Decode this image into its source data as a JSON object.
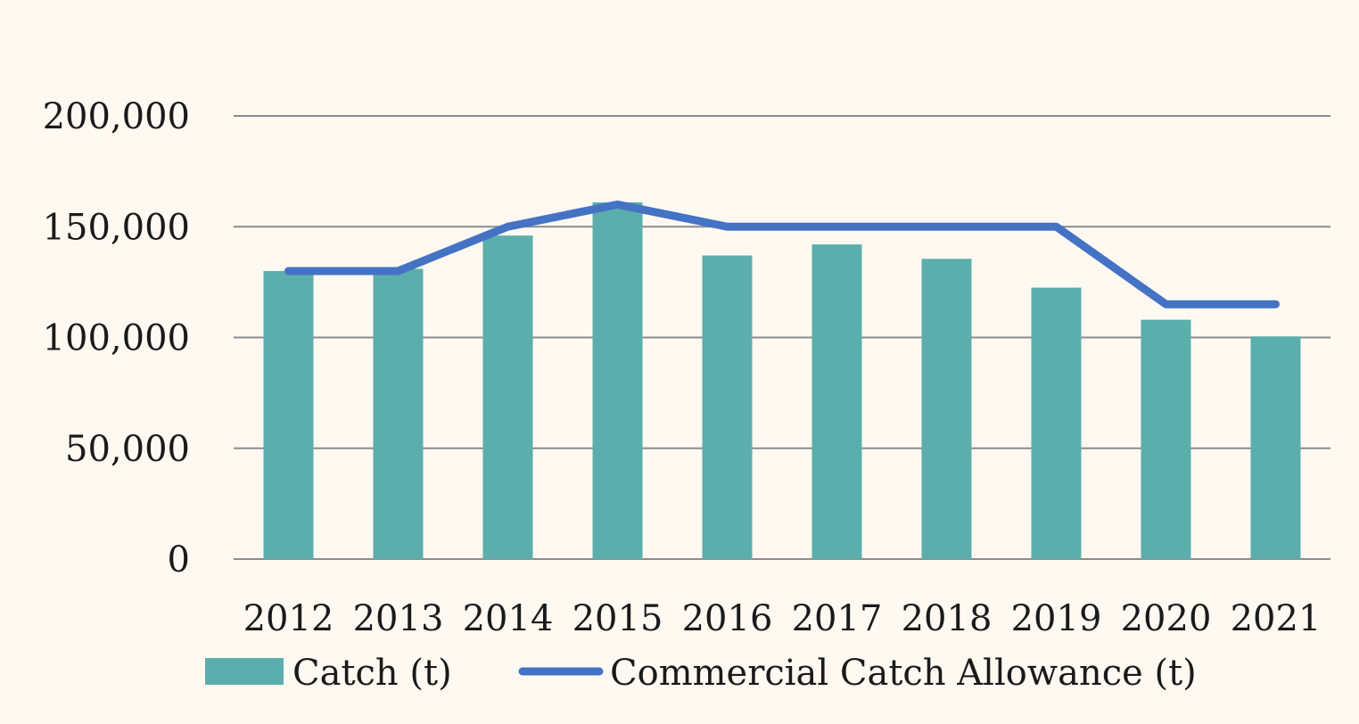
{
  "chart_data": {
    "type": "bar",
    "categories": [
      "2012",
      "2013",
      "2014",
      "2015",
      "2016",
      "2017",
      "2018",
      "2019",
      "2020",
      "2021"
    ],
    "ylim": [
      0,
      200000
    ],
    "yticks": [
      0,
      50000,
      100000,
      150000,
      200000
    ],
    "ytick_labels": [
      "0",
      "50,000",
      "100,000",
      "150,000",
      "200,000"
    ],
    "grid": true,
    "legend_position": "bottom",
    "series": [
      {
        "name": "Catch (t)",
        "type": "bar",
        "color": "#5BAEAB",
        "values": [
          130000,
          131000,
          146000,
          161000,
          137000,
          142000,
          135500,
          122500,
          108000,
          100500
        ]
      },
      {
        "name": "Commercial Catch Allowance (t)",
        "type": "line",
        "color": "#4472C4",
        "values": [
          130000,
          130000,
          150000,
          160000,
          150000,
          150000,
          150000,
          150000,
          115000,
          115000
        ]
      }
    ]
  }
}
